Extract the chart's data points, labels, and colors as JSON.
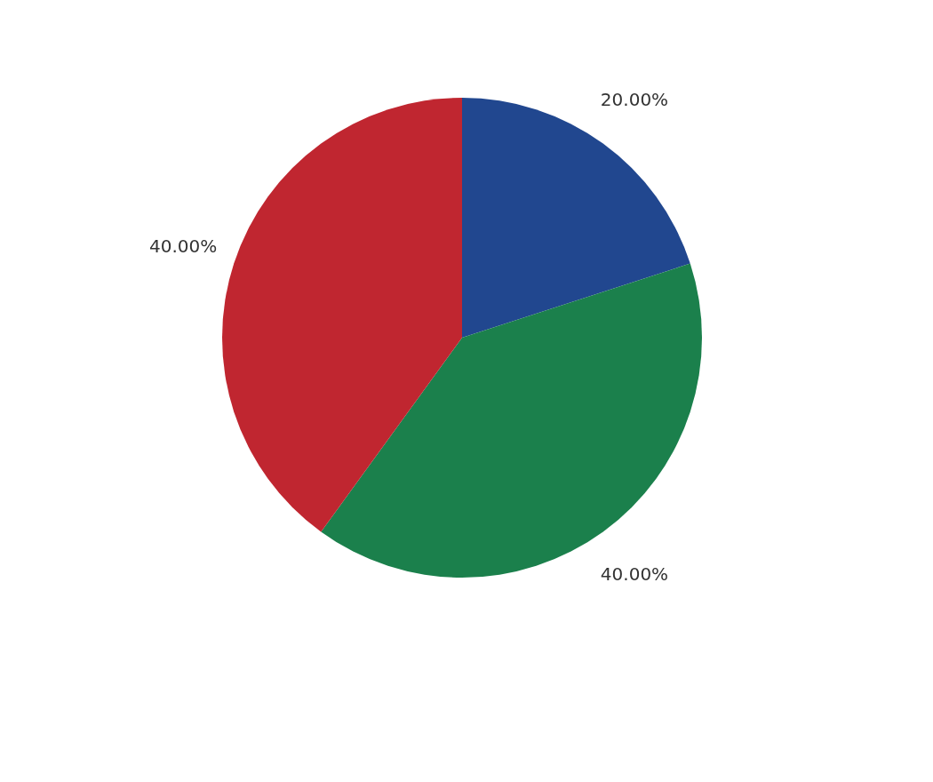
{
  "chart_data": {
    "type": "pie",
    "categories": [
      null,
      null,
      null
    ],
    "values": [
      20,
      40,
      40
    ],
    "colors": [
      "#21478f",
      "#1b804c",
      "#c02630"
    ],
    "value_labels": [
      "20.00%",
      "40.00%",
      "40.00%"
    ],
    "legend": false
  }
}
